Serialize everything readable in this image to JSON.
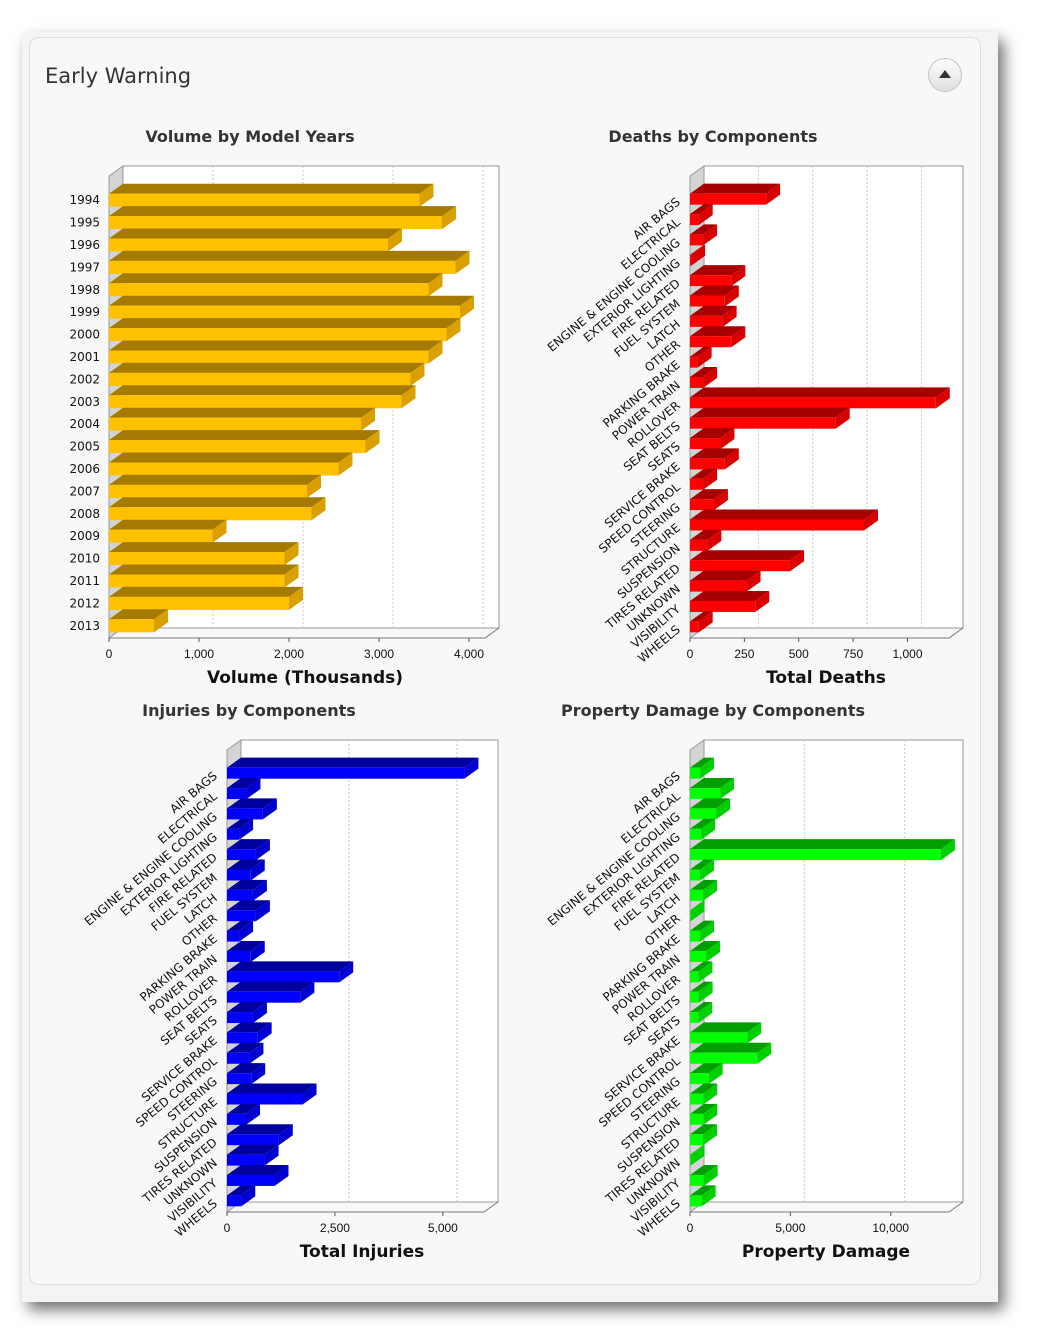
{
  "panel": {
    "title": "Early Warning"
  },
  "chart_data": [
    {
      "type": "bar",
      "orientation": "horizontal",
      "title": "Volume by Model Years",
      "xlabel": "Volume (Thousands)",
      "ylabel": "",
      "xlim": [
        0,
        4200
      ],
      "xticks": [
        0,
        1000,
        2000,
        3000,
        4000
      ],
      "tick_labels": [
        "0",
        "1,000",
        "2,000",
        "3,000",
        "4,000"
      ],
      "categories": [
        "1994",
        "1995",
        "1996",
        "1997",
        "1998",
        "1999",
        "2000",
        "2001",
        "2002",
        "2003",
        "2004",
        "2005",
        "2006",
        "2007",
        "2008",
        "2009",
        "2010",
        "2011",
        "2012",
        "2013"
      ],
      "values": [
        3450,
        3700,
        3100,
        3850,
        3550,
        3900,
        3750,
        3550,
        3350,
        3250,
        2800,
        2850,
        2550,
        2200,
        2250,
        1150,
        1950,
        1950,
        2000,
        500
      ],
      "color": "#ffc000",
      "side_color": "#d9a000",
      "top_color": "#a57a00"
    },
    {
      "type": "bar",
      "orientation": "horizontal",
      "title": "Deaths by Components",
      "xlabel": "Total Deaths",
      "ylabel": "",
      "xlim": [
        0,
        1200
      ],
      "xticks": [
        0,
        250,
        500,
        750,
        1000
      ],
      "tick_labels": [
        "0",
        "250",
        "500",
        "750",
        "1,000"
      ],
      "categories": [
        "AIR BAGS",
        "ELECTRICAL",
        "ENGINE & ENGINE COOLING",
        "EXTERIOR LIGHTING",
        "FIRE RELATED",
        "FUEL SYSTEM",
        "LATCH",
        "OTHER",
        "PARKING BRAKE",
        "POWER TRAIN",
        "ROLLOVER",
        "SEAT BELTS",
        "SEATS",
        "SERVICE BRAKE",
        "SPEED CONTROL",
        "STEERING",
        "STRUCTURE",
        "SUSPENSION",
        "TIRES RELATED",
        "UNKNOWN",
        "VISIBILITY",
        "WHEELS"
      ],
      "values": [
        350,
        40,
        60,
        5,
        190,
        160,
        150,
        190,
        35,
        60,
        1130,
        670,
        140,
        160,
        60,
        110,
        800,
        80,
        460,
        260,
        300,
        40
      ],
      "color": "#ff0000",
      "side_color": "#d80000",
      "top_color": "#a80000"
    },
    {
      "type": "bar",
      "orientation": "horizontal",
      "title": "Injuries by Components",
      "xlabel": "Total Injuries",
      "ylabel": "",
      "xlim": [
        0,
        6000
      ],
      "xticks": [
        0,
        2500,
        5000
      ],
      "tick_labels": [
        "0",
        "2,500",
        "5,000"
      ],
      "categories": [
        "AIR BAGS",
        "ELECTRICAL",
        "ENGINE & ENGINE COOLING",
        "EXTERIOR LIGHTING",
        "FIRE RELATED",
        "FUEL SYSTEM",
        "LATCH",
        "OTHER",
        "PARKING BRAKE",
        "POWER TRAIN",
        "ROLLOVER",
        "SEAT BELTS",
        "SEATS",
        "SERVICE BRAKE",
        "SPEED CONTROL",
        "STEERING",
        "STRUCTURE",
        "SUSPENSION",
        "TIRES RELATED",
        "UNKNOWN",
        "VISIBILITY",
        "WHEELS"
      ],
      "values": [
        5500,
        450,
        830,
        280,
        670,
        550,
        600,
        670,
        280,
        550,
        2600,
        1700,
        600,
        710,
        520,
        560,
        1750,
        440,
        1200,
        870,
        1100,
        330
      ],
      "color": "#0000ff",
      "side_color": "#0000d0",
      "top_color": "#00009e"
    },
    {
      "type": "bar",
      "orientation": "horizontal",
      "title": "Property Damage by Components",
      "xlabel": "Property Damage",
      "ylabel": "",
      "xlim": [
        0,
        13000
      ],
      "xticks": [
        0,
        5000,
        10000
      ],
      "tick_labels": [
        "0",
        "5,000",
        "10,000"
      ],
      "categories": [
        "AIR BAGS",
        "ELECTRICAL",
        "ENGINE & ENGINE COOLING",
        "EXTERIOR LIGHTING",
        "FIRE RELATED",
        "FUEL SYSTEM",
        "LATCH",
        "OTHER",
        "PARKING BRAKE",
        "POWER TRAIN",
        "ROLLOVER",
        "SEAT BELTS",
        "SEATS",
        "SERVICE BRAKE",
        "SPEED CONTROL",
        "STEERING",
        "STRUCTURE",
        "SUSPENSION",
        "TIRES RELATED",
        "UNKNOWN",
        "VISIBILITY",
        "WHEELS"
      ],
      "values": [
        500,
        1500,
        1300,
        550,
        12500,
        500,
        650,
        30,
        500,
        800,
        420,
        430,
        410,
        2850,
        3350,
        930,
        660,
        660,
        650,
        30,
        680,
        580
      ],
      "color": "#00ff00",
      "side_color": "#00d000",
      "top_color": "#009e00"
    }
  ]
}
